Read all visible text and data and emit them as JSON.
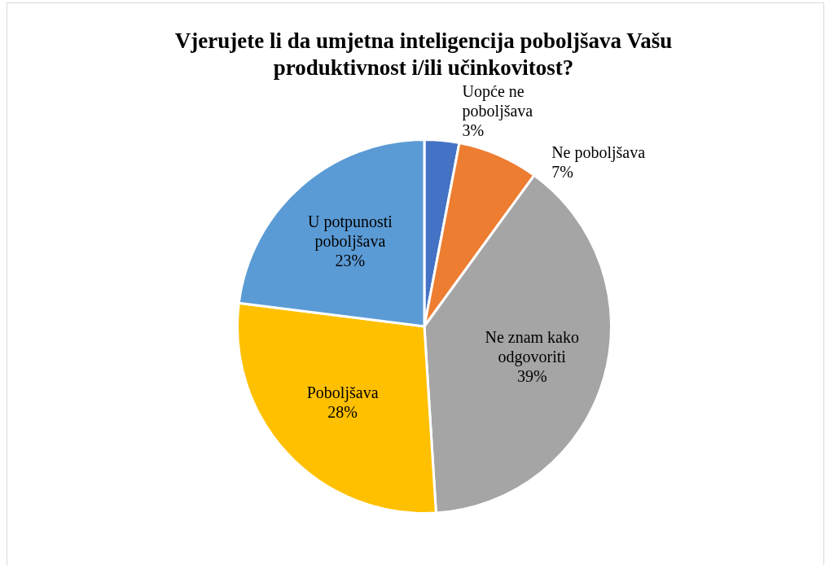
{
  "chart_data": {
    "type": "pie",
    "title": "Vjerujete li da umjetna inteligencija poboljšava Vašu produktivnost i/ili učinkovitost?",
    "categories": [
      "Uopće ne poboljšava",
      "Ne poboljšava",
      "Ne znam kako odgovoriti",
      "Poboljšava",
      "U potpunosti poboljšava"
    ],
    "values": [
      3,
      7,
      39,
      28,
      23
    ],
    "colors": [
      "#4472c4",
      "#ed7d31",
      "#a5a5a5",
      "#ffc000",
      "#5b9bd5"
    ],
    "value_labels": [
      "3%",
      "7%",
      "39%",
      "28%",
      "23%"
    ],
    "legend": false
  }
}
